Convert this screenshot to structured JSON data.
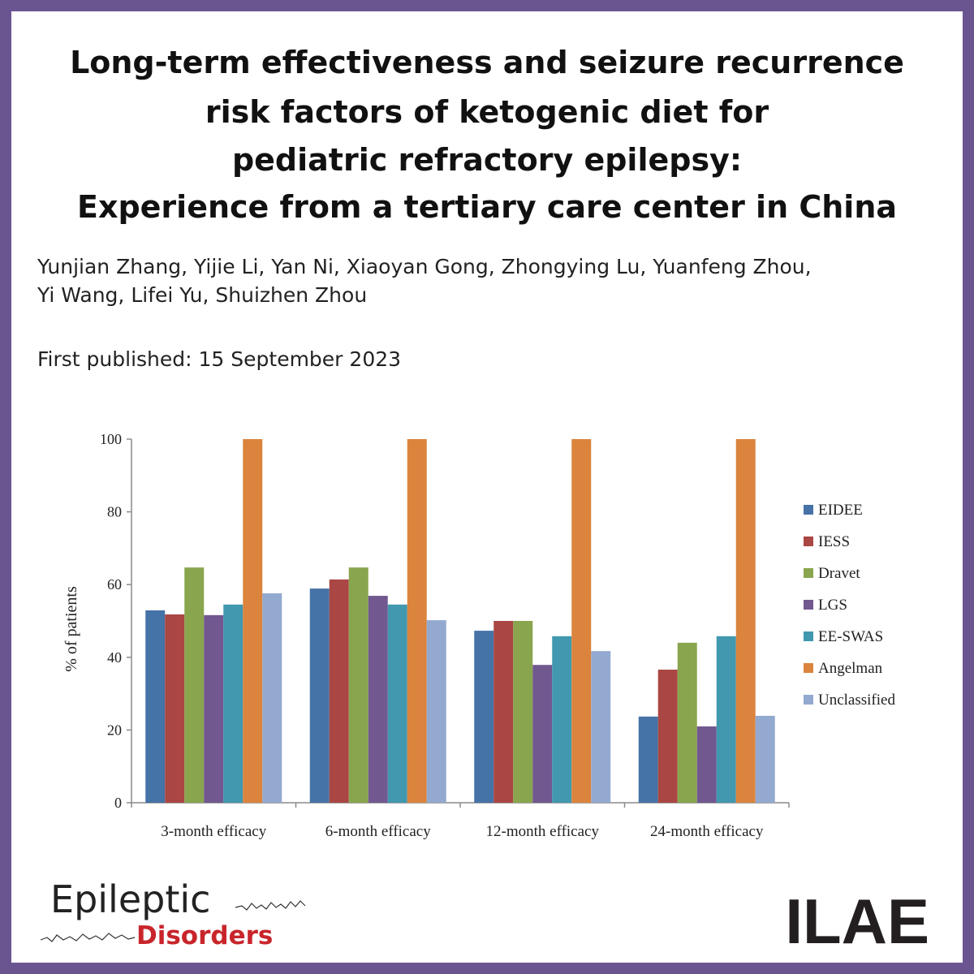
{
  "header": {
    "title_lines": [
      "Long-term effectiveness and seizure recurrence",
      "risk factors of ketogenic diet for",
      "pediatric refractory epilepsy:",
      "Experience from a tertiary care center in China"
    ],
    "author_lines": [
      "Yunjian Zhang, Yijie Li, Yan Ni, Xiaoyan Gong, Zhongying Lu, Yuanfeng Zhou,",
      "Yi Wang, Lifei Yu, Shuizhen Zhou"
    ],
    "published": "First published: 15 September 2023"
  },
  "chart_data": {
    "type": "bar",
    "ylabel": "% of patients",
    "categories": [
      "3-month efficacy",
      "6-month efficacy",
      "12-month efficacy",
      "24-month efficacy"
    ],
    "series": [
      {
        "name": "EIDEE",
        "color": "#4572a7",
        "values": [
          52.9,
          58.9,
          47.3,
          23.7
        ]
      },
      {
        "name": "IESS",
        "color": "#aa4643",
        "values": [
          51.8,
          61.4,
          50,
          36.6
        ]
      },
      {
        "name": "Dravet",
        "color": "#89a54e",
        "values": [
          64.7,
          64.7,
          50,
          44
        ]
      },
      {
        "name": "LGS",
        "color": "#71588f",
        "values": [
          51.6,
          56.9,
          37.9,
          21
        ]
      },
      {
        "name": "EE-SWAS",
        "color": "#4198af",
        "values": [
          54.5,
          54.5,
          45.8,
          45.8
        ]
      },
      {
        "name": "Angelman",
        "color": "#db843d",
        "values": [
          100,
          100,
          100,
          100
        ]
      },
      {
        "name": "Unclassified",
        "color": "#93a9cf",
        "values": [
          57.6,
          50.2,
          41.7,
          23.9
        ]
      }
    ],
    "ylim": [
      0,
      100
    ],
    "yticks": [
      0,
      20,
      40,
      60,
      80,
      100
    ],
    "legend": "right"
  },
  "footer": {
    "journal_top": "Epileptic",
    "journal_bottom": "Disorders",
    "org": "ILAE"
  }
}
